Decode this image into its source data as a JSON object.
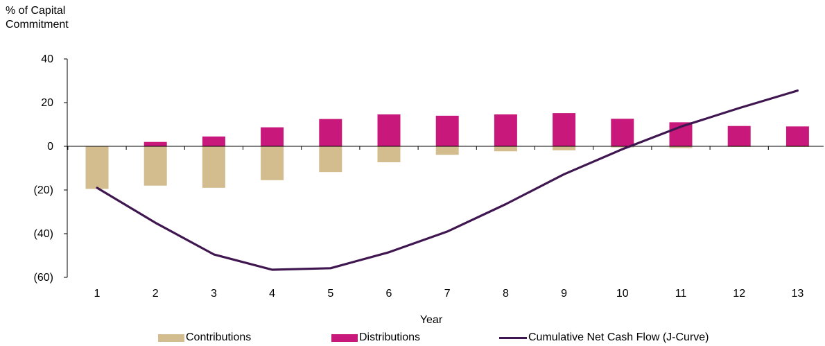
{
  "chart_data": {
    "type": "bar",
    "ylabel_lines": [
      "% of Capital",
      "Commitment"
    ],
    "xlabel": "Year",
    "ylim": [
      -60,
      40
    ],
    "yticks": [
      40,
      20,
      0,
      -20,
      -40,
      -60
    ],
    "ytick_labels": [
      "40",
      "20",
      "0",
      "(20)",
      "(40)",
      "(60)"
    ],
    "categories": [
      "1",
      "2",
      "3",
      "4",
      "5",
      "6",
      "7",
      "8",
      "9",
      "10",
      "11",
      "12",
      "13"
    ],
    "series": [
      {
        "name": "Contributions",
        "kind": "bar",
        "color": "#d3bc8d",
        "values": [
          -19.5,
          -18,
          -19,
          -15.5,
          -11.8,
          -7.3,
          -3.9,
          -2.3,
          -1.8,
          -0.5,
          -0.8,
          -0.3,
          -0.3
        ]
      },
      {
        "name": "Distributions",
        "kind": "bar",
        "color": "#c8187b",
        "values": [
          0,
          2,
          4.5,
          8.7,
          12.5,
          14.6,
          14,
          14.6,
          15.2,
          12.6,
          11,
          9.3,
          9.1
        ]
      },
      {
        "name": "Cumulative Net Cash Flow (J-Curve)",
        "kind": "line",
        "color": "#3f1650",
        "values": [
          -19,
          -35,
          -49.5,
          -56.5,
          -55.8,
          -48.5,
          -39,
          -26.5,
          -12.8,
          -1.3,
          9,
          17.5,
          25.5
        ]
      }
    ],
    "legend_position": "bottom",
    "grid": false
  }
}
